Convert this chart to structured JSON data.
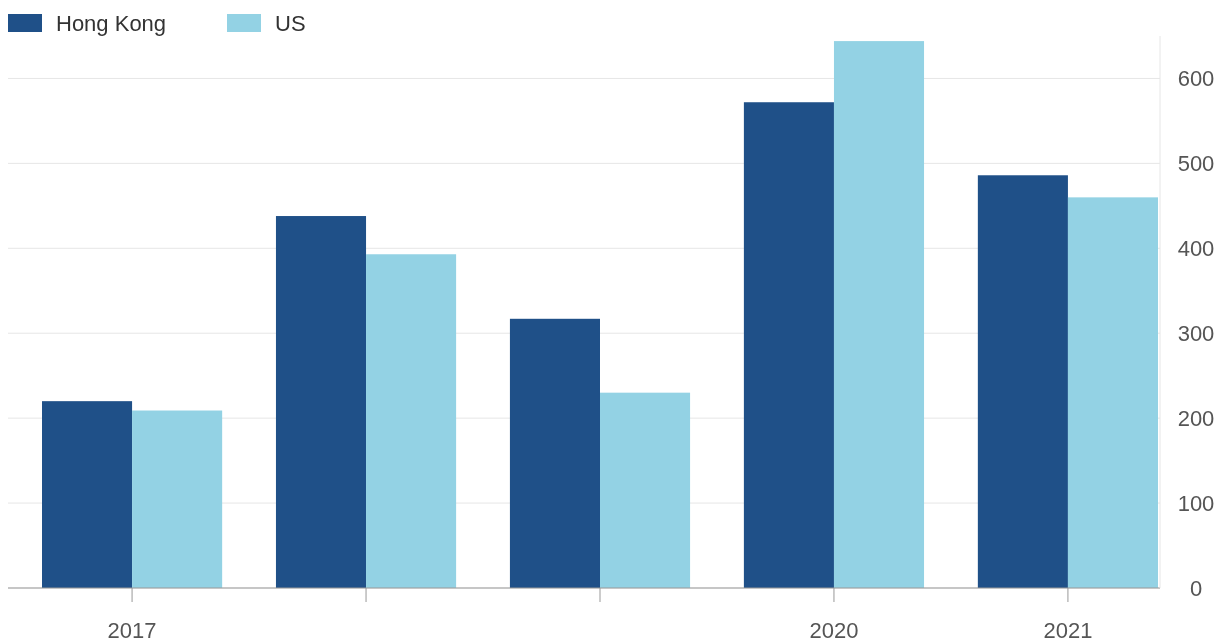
{
  "chart_data": {
    "type": "bar",
    "categories": [
      "2017",
      null,
      null,
      "2020",
      "2021"
    ],
    "series": [
      {
        "name": "Hong Kong",
        "color": "#1f5088",
        "values": [
          220,
          438,
          317,
          572,
          486
        ]
      },
      {
        "name": "US",
        "color": "#93d2e4",
        "values": [
          209,
          393,
          230,
          644,
          460
        ]
      }
    ],
    "ylim": [
      0,
      650
    ],
    "yticks": [
      0,
      100,
      200,
      300,
      400,
      500,
      600
    ],
    "grid": "y",
    "legend": "top left"
  }
}
